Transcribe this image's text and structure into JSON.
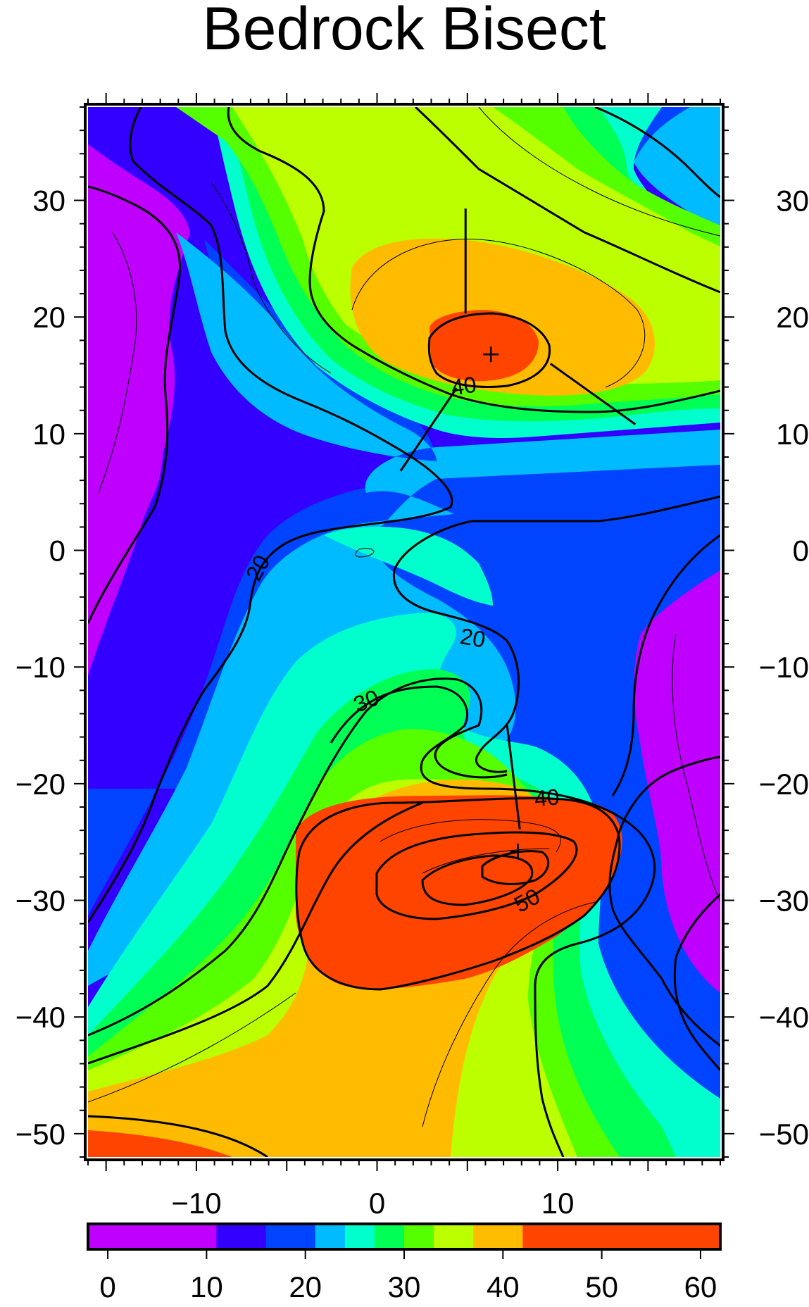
{
  "chart_data": {
    "type": "heatmap",
    "title": "Bedrock Bisect",
    "xlabel": "",
    "ylabel": "",
    "xlim": [
      -16,
      19
    ],
    "ylim": [
      -52,
      38
    ],
    "xticks": [
      -10,
      0,
      10
    ],
    "xtick_labels": [
      "−10",
      "0",
      "10"
    ],
    "yticks": [
      30,
      20,
      10,
      0,
      -10,
      -20,
      -30,
      -40,
      -50
    ],
    "ytick_labels": [
      "30",
      "20",
      "10",
      "0",
      "−10",
      "−20",
      "−30",
      "−40",
      "−50"
    ],
    "grid": false,
    "colorbar": {
      "position": "bottom",
      "ticks": [
        0,
        10,
        20,
        30,
        40,
        50,
        60
      ],
      "tick_labels": [
        "0",
        "10",
        "20",
        "30",
        "40",
        "50",
        "60"
      ],
      "range": [
        -2,
        62
      ],
      "bands": [
        {
          "from": -2,
          "to": 11,
          "color": "#bf00ff"
        },
        {
          "from": 11,
          "to": 16,
          "color": "#3300ff"
        },
        {
          "from": 16,
          "to": 21,
          "color": "#0044ff"
        },
        {
          "from": 21,
          "to": 24,
          "color": "#00bbff"
        },
        {
          "from": 24,
          "to": 27,
          "color": "#00ffcc"
        },
        {
          "from": 27,
          "to": 30,
          "color": "#00ff55"
        },
        {
          "from": 30,
          "to": 33,
          "color": "#55ff00"
        },
        {
          "from": 33,
          "to": 37,
          "color": "#bbff00"
        },
        {
          "from": 37,
          "to": 42,
          "color": "#ffbb00"
        },
        {
          "from": 42,
          "to": 62,
          "color": "#ff4400"
        }
      ]
    },
    "peaks": [
      {
        "x": 6.3,
        "y": 16.8,
        "value": 48
      },
      {
        "x": 7.8,
        "y": -25.8,
        "value": 62
      }
    ],
    "contour_labels": [
      {
        "text": "20",
        "x": -6.6,
        "y": -1.5,
        "angle": -62
      },
      {
        "text": "20",
        "x": 5.3,
        "y": -7.5,
        "angle": 10
      },
      {
        "text": "30",
        "x": -0.6,
        "y": -12.9,
        "angle": -22
      },
      {
        "text": "40",
        "x": 4.8,
        "y": 14.1,
        "angle": -8
      },
      {
        "text": "40",
        "x": 9.4,
        "y": -21.2,
        "angle": -5
      },
      {
        "text": "50",
        "x": 8.3,
        "y": -30.0,
        "angle": -28
      }
    ],
    "profile_lines": [
      [
        [
          4.9,
          29.3
        ],
        [
          4.9,
          20.3
        ]
      ],
      [
        [
          9.6,
          16.0
        ],
        [
          14.3,
          10.8
        ]
      ],
      [
        [
          4.4,
          13.9
        ],
        [
          1.3,
          6.8
        ]
      ],
      [
        [
          7.2,
          -15.0
        ],
        [
          7.9,
          -23.9
        ]
      ]
    ]
  }
}
